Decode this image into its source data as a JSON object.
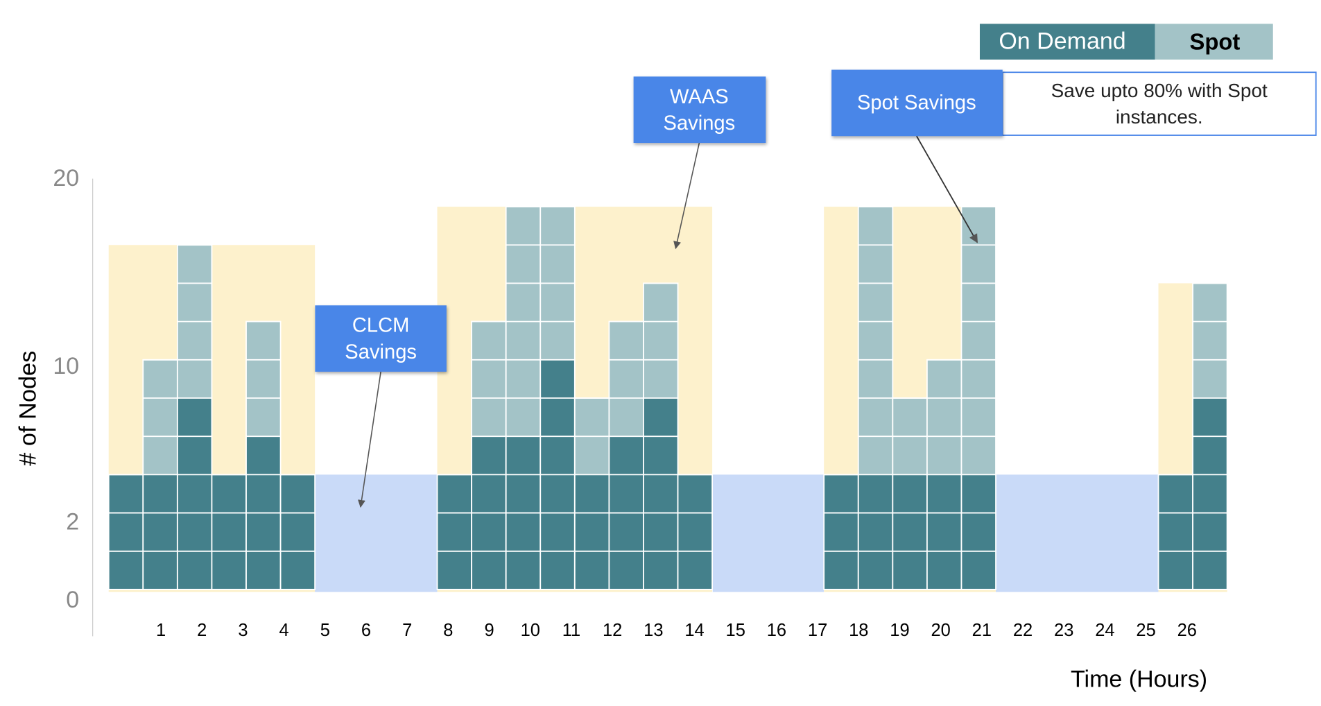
{
  "legend": {
    "on_demand": "On Demand",
    "spot": "Spot"
  },
  "callouts": {
    "clcm": [
      "CLCM",
      "Savings"
    ],
    "waas": [
      "WAAS",
      "Savings"
    ],
    "spot": "Spot Savings",
    "note": [
      "Save upto 80% with Spot",
      "instances."
    ]
  },
  "y_axis": {
    "title": "# of Nodes",
    "labels": [
      "20",
      "10",
      "2",
      "0"
    ]
  },
  "x_axis": {
    "title": "Time (Hours)",
    "labels": [
      1,
      2,
      3,
      4,
      5,
      6,
      7,
      8,
      9,
      10,
      11,
      12,
      13,
      14,
      15,
      16,
      17,
      18,
      19,
      20,
      21,
      22,
      23,
      24,
      25,
      26
    ]
  },
  "groups": [
    {
      "reserved": 9,
      "columns": [
        {
          "on_demand": 3,
          "spot": 0
        },
        {
          "on_demand": 3,
          "spot": 3
        },
        {
          "on_demand": 5,
          "spot": 4
        },
        {
          "on_demand": 3,
          "spot": 0
        },
        {
          "on_demand": 4,
          "spot": 3
        },
        {
          "on_demand": 3,
          "spot": 0
        }
      ]
    },
    {
      "reserved": 10,
      "columns": [
        {
          "on_demand": 3,
          "spot": 0
        },
        {
          "on_demand": 4,
          "spot": 3
        },
        {
          "on_demand": 4,
          "spot": 6
        },
        {
          "on_demand": 6,
          "spot": 4
        },
        {
          "on_demand": 3,
          "spot": 2
        },
        {
          "on_demand": 4,
          "spot": 3
        },
        {
          "on_demand": 5,
          "spot": 3
        },
        {
          "on_demand": 3,
          "spot": 0
        }
      ]
    },
    {
      "reserved": 10,
      "columns": [
        {
          "on_demand": 3,
          "spot": 0
        },
        {
          "on_demand": 3,
          "spot": 7
        },
        {
          "on_demand": 3,
          "spot": 2
        },
        {
          "on_demand": 3,
          "spot": 3
        },
        {
          "on_demand": 3,
          "spot": 7
        }
      ]
    },
    {
      "reserved": 8,
      "columns": [
        {
          "on_demand": 3,
          "spot": 0
        },
        {
          "on_demand": 5,
          "spot": 3
        }
      ]
    }
  ]
}
